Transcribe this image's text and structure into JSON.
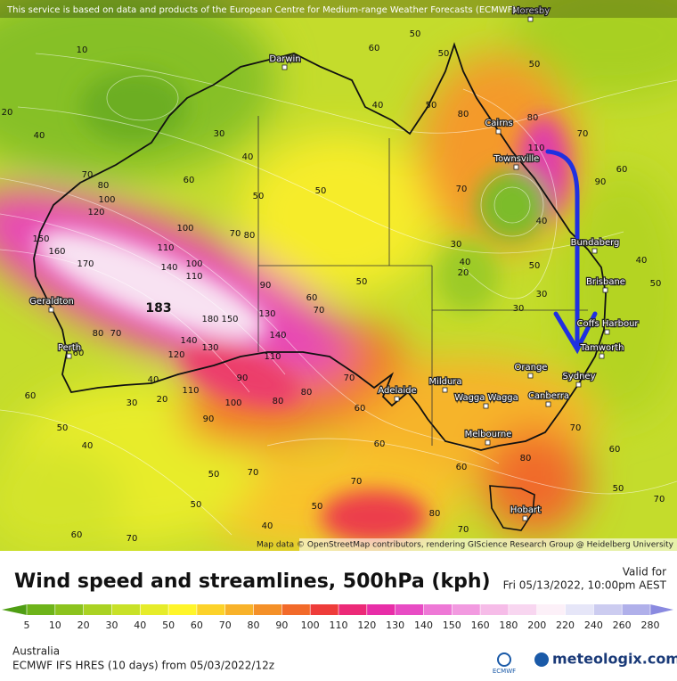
{
  "banner": "This service is based on data and products of the European Centre for Medium-range Weather Forecasts (ECMWF)",
  "cities": [
    "Moresby",
    "Darwin",
    "Cairns",
    "Townsville",
    "Bundaberg",
    "Brisbane",
    "Coffs Harbour",
    "Tamworth",
    "Orange",
    "Sydney",
    "Canberra",
    "Wagga Wagga",
    "Mildura",
    "Adelaide",
    "Melbourne",
    "Geraldton",
    "Perth",
    "Hobart"
  ],
  "wind_labels": [
    183,
    170,
    160,
    150,
    120,
    100,
    80,
    70,
    60,
    40,
    30,
    20,
    10,
    110,
    140,
    100,
    110,
    100,
    70,
    80,
    180,
    150,
    140,
    130,
    120,
    110,
    90,
    100,
    90,
    80,
    80,
    70,
    60,
    90,
    130,
    140,
    110,
    60,
    70,
    50,
    40,
    50,
    50,
    40,
    50,
    80,
    80,
    70,
    110,
    70,
    90,
    60,
    30,
    40,
    40,
    30,
    30,
    50,
    40,
    50,
    20,
    60,
    80,
    70,
    60,
    50,
    40,
    30,
    20,
    40,
    50,
    70,
    60,
    70,
    80,
    70,
    60,
    60,
    50,
    80,
    70,
    50,
    40,
    50,
    60,
    70,
    50,
    50,
    50,
    60,
    70
  ],
  "attribution": "Map data © OpenStreetMap contributors, rendering GIScience Research Group @ Heidelberg University",
  "title": "Wind speed and streamlines, 500hPa (kph)",
  "valid_label": "Valid for",
  "valid_time": "Fri 05/13/2022, 10:00pm AEST",
  "legend": {
    "ticks": [
      5,
      10,
      20,
      30,
      40,
      50,
      60,
      70,
      80,
      90,
      100,
      110,
      120,
      130,
      140,
      150,
      160,
      180,
      200,
      220,
      240,
      260,
      280
    ],
    "colors": [
      "#4f9e14",
      "#6eb41a",
      "#8cc31e",
      "#aad223",
      "#c8e128",
      "#e6ec2a",
      "#fff52a",
      "#fcd22a",
      "#f8b22a",
      "#f49028",
      "#f26a2a",
      "#ee3c3a",
      "#ec2a78",
      "#e82ea8",
      "#e84cc4",
      "#ee78d6",
      "#f29ae0",
      "#f6bce8",
      "#f8d6f0",
      "#fcf0f8",
      "#e6e6f8",
      "#ccccf0",
      "#b0b0ea",
      "#8a8ae0"
    ]
  },
  "region": "Australia",
  "model": "ECMWF IFS HRES (10 days) from 05/03/2022/12z",
  "logo_left": "ECMWF",
  "logo_right": "meteologix.com"
}
